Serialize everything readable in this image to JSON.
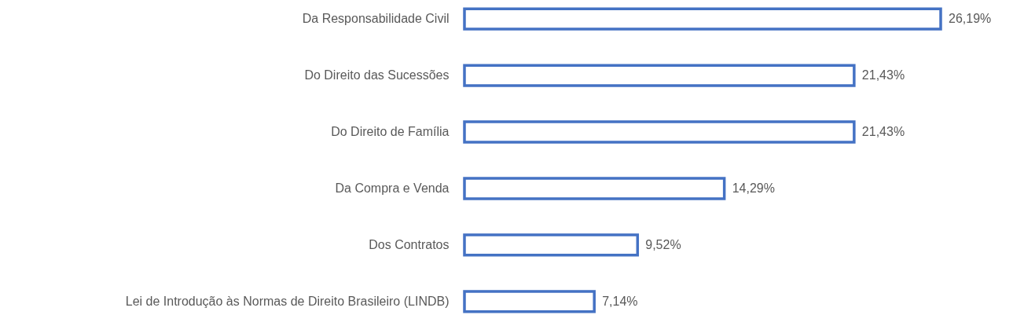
{
  "chart_data": {
    "type": "bar",
    "orientation": "horizontal",
    "categories": [
      "Da Responsabilidade Civil",
      "Do Direito das Sucessões",
      "Do Direito de Família",
      "Da Compra e Venda",
      "Dos Contratos",
      "Lei de Introdução às Normas de Direito Brasileiro (LINDB)"
    ],
    "values": [
      26.19,
      21.43,
      21.43,
      14.29,
      9.52,
      7.14
    ],
    "value_labels": [
      "26,19%",
      "21,43%",
      "21,43%",
      "14,29%",
      "9,52%",
      "7,14%"
    ],
    "color": "#4472c4",
    "grid": false
  }
}
